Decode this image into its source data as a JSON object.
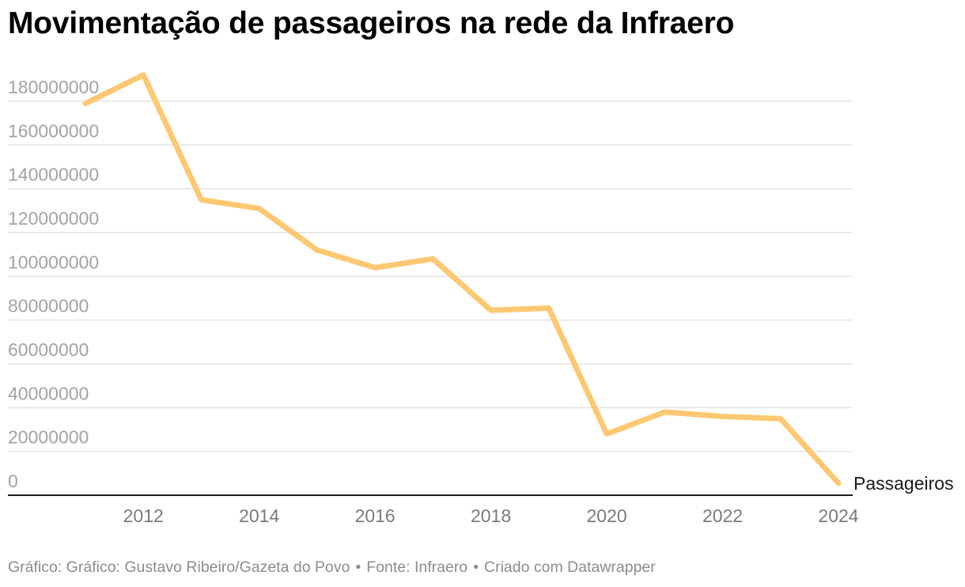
{
  "title": "Movimentação de passageiros na rede da Infraero",
  "chart_data": {
    "type": "line",
    "title": "Movimentação de passageiros na rede da Infraero",
    "xlabel": "",
    "ylabel": "",
    "x": [
      2011,
      2012,
      2013,
      2014,
      2015,
      2016,
      2017,
      2018,
      2019,
      2020,
      2021,
      2022,
      2023,
      2024
    ],
    "series": [
      {
        "name": "Passageiros",
        "values": [
          179000000,
          192000000,
          135000000,
          131000000,
          112000000,
          104000000,
          108000000,
          84500000,
          85500000,
          28000000,
          38000000,
          36000000,
          35000000,
          5500000
        ]
      }
    ],
    "x_ticks": [
      "2012",
      "2014",
      "2016",
      "2018",
      "2020",
      "2022",
      "2024"
    ],
    "y_ticks": [
      "0",
      "20000000",
      "40000000",
      "60000000",
      "80000000",
      "100000000",
      "120000000",
      "140000000",
      "160000000",
      "180000000"
    ],
    "xlim": [
      2011,
      2024
    ],
    "ylim": [
      0,
      180000000
    ],
    "grid": true,
    "line_color": "#fdc872"
  },
  "footer": {
    "credit": "Gráfico: Gráfico: Gustavo Ribeiro/Gazeta do Povo",
    "source": "Fonte: Infraero",
    "made_with": "Criado com Datawrapper",
    "separator": "•"
  }
}
